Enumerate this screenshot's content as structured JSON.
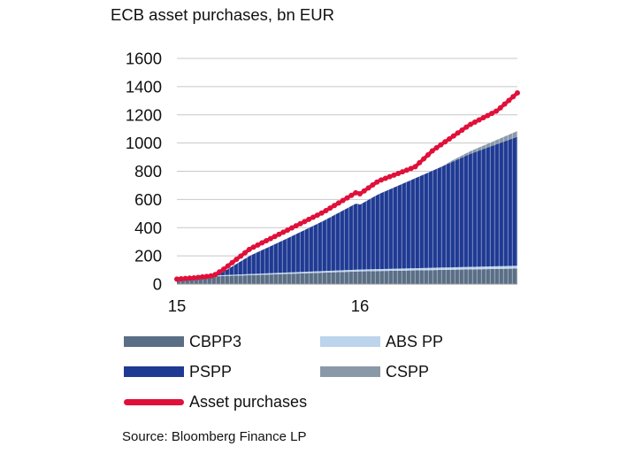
{
  "chart_data": {
    "type": "area",
    "title": "ECB asset purchases, bn EUR",
    "xlabel": "",
    "ylabel": "",
    "ylim": [
      0,
      1600
    ],
    "yticks": [
      0,
      200,
      400,
      600,
      800,
      1000,
      1200,
      1400,
      1600
    ],
    "xlim": [
      2015.0,
      2016.86
    ],
    "xticks": [
      {
        "value": 2015.0,
        "label": "15"
      },
      {
        "value": 2016.0,
        "label": "16"
      }
    ],
    "grid": "horizontal",
    "stacked_series": [
      {
        "name": "CBPP3",
        "color": "#5a6e86",
        "x": [
          2015.0,
          2015.2,
          2015.22,
          2016.0,
          2016.86
        ],
        "values": [
          30,
          50,
          55,
          90,
          110
        ]
      },
      {
        "name": "ABS PP",
        "color": "#bcd4ec",
        "x": [
          2015.0,
          2016.86
        ],
        "values": [
          5,
          20
        ]
      },
      {
        "name": "PSPP",
        "color": "#1f3a93",
        "x": [
          2015.0,
          2015.2,
          2015.25,
          2015.4,
          2015.6,
          2015.8,
          2015.98,
          2016.0,
          2016.1,
          2016.4,
          2016.6,
          2016.86
        ],
        "values": [
          0,
          0,
          20,
          130,
          240,
          355,
          470,
          460,
          530,
          690,
          800,
          915
        ]
      },
      {
        "name": "CSPP",
        "color": "#8a99a8",
        "x": [
          2015.0,
          2016.45,
          2016.5,
          2016.86
        ],
        "values": [
          0,
          0,
          10,
          40
        ]
      }
    ],
    "line_series": [
      {
        "name": "Asset purchases",
        "color": "#e0103a",
        "x": [
          2015.0,
          2015.1,
          2015.2,
          2015.25,
          2015.4,
          2015.6,
          2015.8,
          2015.98,
          2016.0,
          2016.1,
          2016.3,
          2016.4,
          2016.6,
          2016.75,
          2016.86
        ],
        "values": [
          35,
          45,
          60,
          100,
          250,
          380,
          510,
          650,
          640,
          730,
          830,
          950,
          1130,
          1230,
          1355
        ]
      }
    ],
    "legend": {
      "position": "bottom",
      "columns": 2
    }
  },
  "source": "Source: Bloomberg Finance LP"
}
